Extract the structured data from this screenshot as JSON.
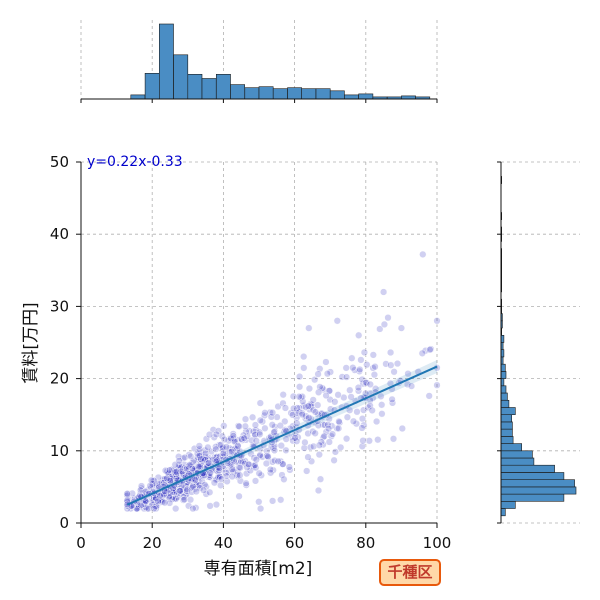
{
  "area_label": "千種区",
  "colors": {
    "scatter": "#2b2bbf",
    "regression_line": "#1f77b4",
    "histogram_fill": "#4a8dc4",
    "histogram_edge": "#1a1a1a",
    "grid": "#b0b0b0",
    "equation": "#0000cc",
    "badge_fill": "#ffd8a8",
    "badge_border": "#e8590c",
    "badge_text": "#c0392b"
  },
  "chart_data": {
    "type": "scatter",
    "xlabel": "専有面積[m2]",
    "ylabel": "賃料[万円]",
    "xlim": [
      0,
      100
    ],
    "ylim": [
      0,
      50
    ],
    "xticks": [
      0,
      20,
      40,
      60,
      80,
      100
    ],
    "yticks": [
      0,
      10,
      20,
      30,
      40,
      50
    ],
    "grid": true,
    "regression": {
      "slope": 0.22,
      "intercept": -0.33,
      "x_range": [
        13,
        100
      ],
      "label": "y=0.22x-0.33"
    },
    "scatter_clusters": [
      {
        "cx": 25,
        "cy": 6.0,
        "sx": 6,
        "sy": 1.6,
        "n": 320
      },
      {
        "cx": 38,
        "cy": 8.5,
        "sx": 7,
        "sy": 2.5,
        "n": 200
      },
      {
        "cx": 55,
        "cy": 11.5,
        "sx": 9,
        "sy": 3.5,
        "n": 170
      },
      {
        "cx": 75,
        "cy": 15.0,
        "sx": 12,
        "sy": 5.0,
        "n": 140
      }
    ],
    "scatter_outliers": [
      [
        96,
        37.2
      ],
      [
        85,
        32.0
      ],
      [
        72,
        28.0
      ],
      [
        64,
        27.0
      ],
      [
        100,
        28.0
      ],
      [
        90,
        27.0
      ],
      [
        78,
        26.0
      ],
      [
        98,
        24.0
      ]
    ],
    "x_histogram": {
      "bin_start": 14,
      "bin_width": 4,
      "counts": [
        4,
        25,
        73,
        43,
        24,
        20,
        24,
        14,
        11,
        12,
        10,
        11,
        10,
        10,
        8,
        4,
        5,
        2,
        2,
        3,
        2
      ]
    },
    "y_histogram": {
      "bin_start": 1,
      "bin_width": 1,
      "counts": [
        6,
        20,
        88,
        105,
        103,
        88,
        75,
        46,
        44,
        29,
        17,
        16,
        16,
        15,
        20,
        11,
        9,
        7,
        4,
        7,
        6,
        3,
        4,
        3,
        4,
        1,
        2,
        2,
        1,
        1,
        0,
        1,
        1,
        1,
        1,
        1,
        1,
        0,
        1,
        1,
        0,
        1,
        0,
        0,
        0,
        0,
        1,
        0,
        0
      ]
    }
  }
}
